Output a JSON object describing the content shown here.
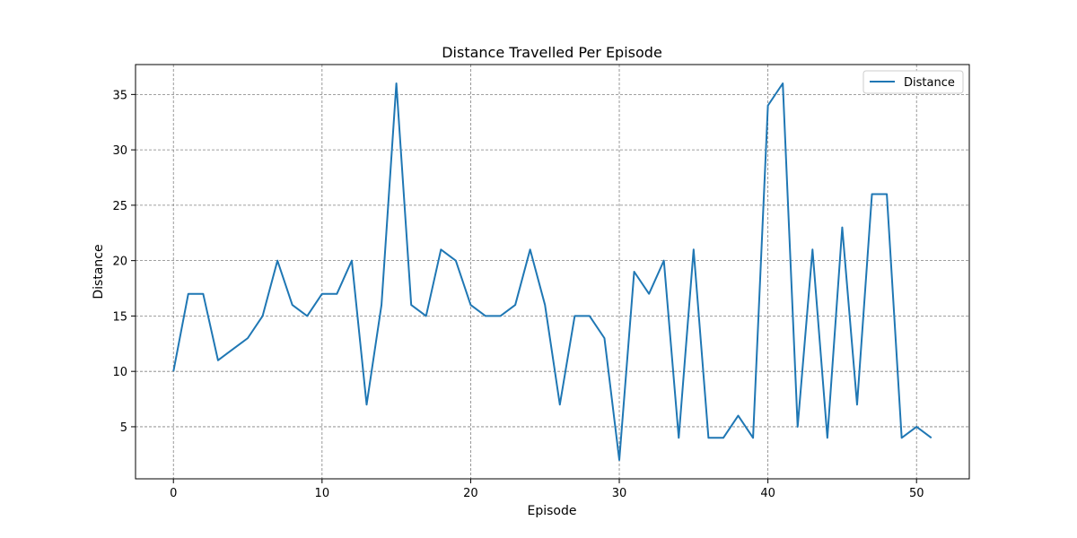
{
  "chart_data": {
    "type": "line",
    "title": "Distance Travelled Per Episode",
    "xlabel": "Episode",
    "ylabel": "Distance",
    "xlim": [
      -2.55,
      53.55
    ],
    "ylim": [
      0.3,
      37.7
    ],
    "xticks": [
      0,
      10,
      20,
      30,
      40,
      50
    ],
    "yticks": [
      5,
      10,
      15,
      20,
      25,
      30,
      35
    ],
    "grid": true,
    "legend_position": "top-right",
    "colors": {
      "line": "#1f77b4",
      "grid": "#808080",
      "axes": "#000000"
    },
    "series": [
      {
        "name": "Distance",
        "x": [
          0,
          1,
          2,
          3,
          4,
          5,
          6,
          7,
          8,
          9,
          10,
          11,
          12,
          13,
          14,
          15,
          16,
          17,
          18,
          19,
          20,
          21,
          22,
          23,
          24,
          25,
          26,
          27,
          28,
          29,
          30,
          31,
          32,
          33,
          34,
          35,
          36,
          37,
          38,
          39,
          40,
          41,
          42,
          43,
          44,
          45,
          46,
          47,
          48,
          49,
          50,
          51
        ],
        "values": [
          10,
          17,
          17,
          11,
          12,
          13,
          15,
          20,
          16,
          15,
          17,
          17,
          20,
          7,
          16,
          36,
          16,
          15,
          21,
          20,
          16,
          15,
          15,
          16,
          21,
          16,
          7,
          15,
          15,
          13,
          2,
          19,
          17,
          20,
          4,
          21,
          4,
          4,
          6,
          4,
          34,
          36,
          5,
          21,
          4,
          23,
          7,
          26,
          26,
          4,
          5,
          4
        ]
      }
    ]
  }
}
